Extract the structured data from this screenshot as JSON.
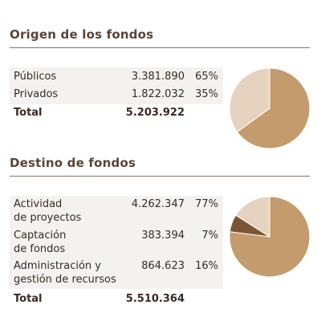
{
  "sections": [
    {
      "title": "Origen de los fondos",
      "rows": [
        {
          "label": "Públicos",
          "value": "3.381.890",
          "pct": "65%"
        },
        {
          "label": "Privados",
          "value": "1.822.032",
          "pct": "35%"
        }
      ],
      "total_label": "Total",
      "total_value": "5.203.922"
    },
    {
      "title": "Destino de fondos",
      "rows": [
        {
          "label_lines": [
            "Actividad",
            "de proyectos"
          ],
          "value": "4.262.347",
          "pct": "77%"
        },
        {
          "label_lines": [
            "Captación",
            "de fondos"
          ],
          "value": "383.394",
          "pct": "7%"
        },
        {
          "label_lines": [
            "Administración y",
            "gestión de recursos"
          ],
          "value": "864.623",
          "pct": "16%"
        }
      ],
      "total_label": "Total",
      "total_value": "5.510.364"
    }
  ],
  "colors": {
    "pie_main": "#c49b6c",
    "pie_light": "#e6d3bf",
    "pie_dark": "#7d5534",
    "pie_stroke": "#ffffff"
  },
  "chart_data": [
    {
      "type": "pie",
      "categories": [
        "Públicos",
        "Privados"
      ],
      "values": [
        65,
        35
      ],
      "colors": [
        "#c49b6c",
        "#e6d3bf"
      ]
    },
    {
      "type": "pie",
      "categories": [
        "Actividad de proyectos",
        "Captación de fondos",
        "Administración y gestión de recursos"
      ],
      "values": [
        77,
        7,
        16
      ],
      "colors": [
        "#c49b6c",
        "#7d5534",
        "#e6d3bf"
      ]
    }
  ]
}
